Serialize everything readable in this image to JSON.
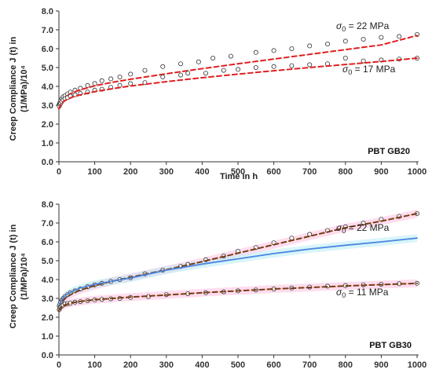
{
  "chart_data": [
    {
      "type": "scatter",
      "panel_label": "PBT GB20",
      "xlabel": "Time in h",
      "ylabel_line1": "Creep Compliance J (t) in",
      "ylabel_line2": "(1/MPa)/10⁴",
      "xlim": [
        0,
        1000
      ],
      "ylim": [
        0,
        8
      ],
      "x_ticks": [
        "0",
        "100",
        "200",
        "300",
        "400",
        "500",
        "600",
        "700",
        "800",
        "900",
        "1000"
      ],
      "y_ticks": [
        "0.0",
        "1.0",
        "2.0",
        "3.0",
        "4.0",
        "5.0",
        "6.0",
        "7.0",
        "8.0"
      ],
      "grid": false,
      "series": [
        {
          "name": "σ0 = 22 MPa",
          "label_sigma": "σ",
          "label_sub": "0",
          "label_rest": " = 22 MPa",
          "color": "#e02020",
          "points_x": [
            1,
            3,
            5,
            8,
            12,
            17,
            24,
            32,
            45,
            60,
            80,
            100,
            120,
            145,
            170,
            200,
            240,
            290,
            340,
            390,
            430,
            480,
            550,
            600,
            650,
            700,
            750,
            800,
            850,
            900,
            950,
            1000
          ],
          "points_y": [
            3.05,
            3.15,
            3.25,
            3.35,
            3.45,
            3.5,
            3.6,
            3.7,
            3.8,
            3.9,
            4.05,
            4.15,
            4.3,
            4.4,
            4.5,
            4.65,
            4.85,
            5.05,
            5.2,
            5.3,
            5.5,
            5.6,
            5.8,
            5.9,
            6.0,
            6.15,
            6.25,
            6.4,
            6.5,
            6.6,
            6.65,
            6.75
          ],
          "fit_x": [
            0,
            5,
            10,
            20,
            40,
            60,
            100,
            150,
            200,
            300,
            400,
            500,
            600,
            700,
            800,
            900,
            1000
          ],
          "fit_y": [
            2.9,
            3.2,
            3.33,
            3.48,
            3.68,
            3.82,
            4.03,
            4.22,
            4.38,
            4.67,
            4.94,
            5.2,
            5.45,
            5.7,
            5.95,
            6.2,
            6.7
          ]
        },
        {
          "name": "σ0 = 17 MPa",
          "label_sigma": "σ",
          "label_sub": "0",
          "label_rest": " = 17 MPa",
          "color": "#e02020",
          "points_x": [
            1,
            3,
            5,
            8,
            12,
            17,
            24,
            32,
            45,
            60,
            80,
            100,
            120,
            145,
            170,
            200,
            240,
            290,
            340,
            360,
            410,
            460,
            500,
            550,
            600,
            650,
            700,
            750,
            800,
            850,
            900,
            950,
            1000
          ],
          "points_y": [
            2.95,
            3.05,
            3.1,
            3.2,
            3.28,
            3.35,
            3.4,
            3.48,
            3.55,
            3.62,
            3.7,
            3.8,
            3.85,
            3.95,
            4.05,
            4.15,
            4.2,
            4.5,
            4.6,
            4.7,
            4.7,
            4.85,
            4.9,
            5.0,
            5.05,
            5.1,
            5.15,
            5.2,
            5.5,
            5.35,
            5.4,
            5.45,
            5.5
          ],
          "fit_x": [
            0,
            5,
            10,
            20,
            40,
            60,
            100,
            150,
            200,
            300,
            400,
            500,
            600,
            700,
            800,
            900,
            1000
          ],
          "fit_y": [
            2.8,
            3.05,
            3.15,
            3.28,
            3.45,
            3.55,
            3.72,
            3.88,
            4.02,
            4.25,
            4.46,
            4.65,
            4.83,
            5.0,
            5.16,
            5.32,
            5.5
          ]
        }
      ]
    },
    {
      "type": "scatter",
      "panel_label": "PBT GB30",
      "xlabel": "",
      "ylabel_line1": "Creep Compliance J (t) in",
      "ylabel_line2": "(1/MPa)/10⁴",
      "xlim": [
        0,
        1000
      ],
      "ylim": [
        0,
        8
      ],
      "x_ticks": [
        "0",
        "100",
        "200",
        "300",
        "400",
        "500",
        "600",
        "700",
        "800",
        "900",
        "1000"
      ],
      "y_ticks": [
        "0.0",
        "1.0",
        "2.0",
        "3.0",
        "4.0",
        "5.0",
        "6.0",
        "7.0",
        "8.0"
      ],
      "grid": false,
      "series": [
        {
          "name": "σ0 = 22 MPa",
          "label_sigma": "σ",
          "label_sub": "0",
          "label_rest": " = 22 MPa",
          "color": "#7a3b12",
          "band_color": "#ffc0e0",
          "points_x": [
            1,
            3,
            5,
            8,
            12,
            17,
            24,
            32,
            45,
            60,
            80,
            100,
            120,
            145,
            170,
            200,
            240,
            290,
            340,
            360,
            410,
            460,
            500,
            550,
            600,
            650,
            700,
            750,
            800,
            850,
            900,
            950,
            1000
          ],
          "points_y": [
            2.6,
            2.7,
            2.8,
            2.9,
            3.0,
            3.1,
            3.2,
            3.3,
            3.4,
            3.5,
            3.62,
            3.72,
            3.8,
            3.9,
            4.0,
            4.1,
            4.3,
            4.5,
            4.7,
            4.8,
            5.05,
            5.25,
            5.5,
            5.7,
            5.95,
            6.2,
            6.4,
            6.6,
            6.8,
            7.0,
            7.2,
            7.35,
            7.5
          ],
          "fit_x": [
            0,
            5,
            10,
            20,
            40,
            60,
            100,
            150,
            200,
            300,
            400,
            500,
            600,
            700,
            800,
            900,
            1000
          ],
          "fit_y": [
            2.5,
            2.75,
            2.88,
            3.05,
            3.28,
            3.44,
            3.68,
            3.92,
            4.12,
            4.52,
            4.95,
            5.4,
            5.85,
            6.3,
            6.75,
            7.1,
            7.5
          ]
        },
        {
          "name": "",
          "color": "#4a86e0",
          "band_color": "#b8ecf5",
          "fit_x": [
            0,
            5,
            10,
            20,
            40,
            60,
            100,
            150,
            200,
            300,
            400,
            500,
            600,
            700,
            800,
            900,
            1000
          ],
          "fit_y": [
            2.5,
            2.85,
            3.0,
            3.18,
            3.4,
            3.55,
            3.75,
            3.92,
            4.08,
            4.5,
            4.82,
            5.1,
            5.38,
            5.62,
            5.82,
            6.0,
            6.2
          ]
        },
        {
          "name": "σ0 = 11 MPa",
          "label_sigma": "σ",
          "label_sub": "0",
          "label_rest": " = 11 MPa",
          "color": "#7a3b12",
          "band_color": "#ffc0e0",
          "points_x": [
            1,
            3,
            5,
            8,
            12,
            17,
            24,
            32,
            45,
            60,
            80,
            100,
            120,
            145,
            170,
            200,
            250,
            300,
            360,
            410,
            460,
            500,
            550,
            600,
            650,
            700,
            750,
            800,
            850,
            900,
            950,
            1000
          ],
          "points_y": [
            2.4,
            2.5,
            2.55,
            2.6,
            2.65,
            2.7,
            2.72,
            2.75,
            2.8,
            2.83,
            2.88,
            2.92,
            2.95,
            2.98,
            3.0,
            3.05,
            3.1,
            3.2,
            3.25,
            3.3,
            3.35,
            3.4,
            3.45,
            3.5,
            3.55,
            3.6,
            3.65,
            3.68,
            3.72,
            3.75,
            3.78,
            3.8
          ],
          "fit_x": [
            0,
            5,
            10,
            20,
            40,
            60,
            100,
            150,
            200,
            300,
            400,
            500,
            600,
            700,
            800,
            900,
            1000
          ],
          "fit_y": [
            2.35,
            2.52,
            2.6,
            2.68,
            2.78,
            2.84,
            2.93,
            3.0,
            3.07,
            3.18,
            3.3,
            3.4,
            3.5,
            3.58,
            3.66,
            3.73,
            3.8
          ]
        }
      ]
    }
  ]
}
